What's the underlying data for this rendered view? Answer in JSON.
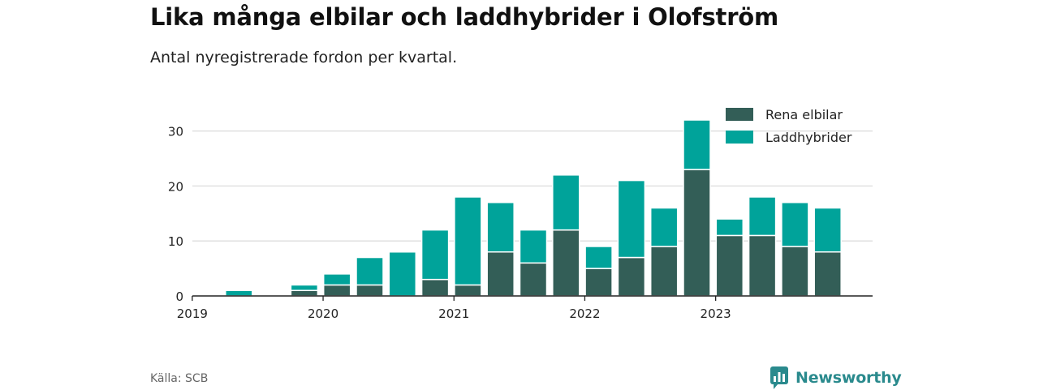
{
  "chart_data": {
    "type": "bar",
    "stacked": true,
    "title": "Lika många elbilar och laddhybrider i Olofström",
    "subtitle": "Antal nyregistrerade fordon per kvartal.",
    "categories": [
      "2019 Q1",
      "2019 Q2",
      "2019 Q3",
      "2019 Q4",
      "2020 Q1",
      "2020 Q2",
      "2020 Q3",
      "2020 Q4",
      "2021 Q1",
      "2021 Q2",
      "2021 Q3",
      "2021 Q4",
      "2022 Q1",
      "2022 Q2",
      "2022 Q3",
      "2022 Q4",
      "2023 Q1",
      "2023 Q2",
      "2023 Q3",
      "2023 Q4"
    ],
    "series": [
      {
        "name": "Rena elbilar",
        "color": "#335e57",
        "values": [
          0,
          0,
          0,
          1,
          2,
          2,
          0,
          3,
          2,
          8,
          6,
          12,
          5,
          7,
          9,
          23,
          11,
          11,
          9,
          8
        ]
      },
      {
        "name": "Laddhybrider",
        "color": "#00a39a",
        "values": [
          0,
          1,
          0,
          1,
          2,
          5,
          8,
          9,
          16,
          9,
          6,
          10,
          4,
          14,
          7,
          9,
          3,
          7,
          8,
          8
        ]
      }
    ],
    "y_ticks": [
      "0",
      "10",
      "20",
      "30"
    ],
    "ylim": [
      0,
      33
    ],
    "x_ticks": [
      "2019",
      "2020",
      "2021",
      "2022",
      "2023"
    ],
    "legend_position": "top-right",
    "grid": true
  },
  "footer": {
    "source": "Källa: SCB",
    "logo_text": "Newsworthy"
  }
}
